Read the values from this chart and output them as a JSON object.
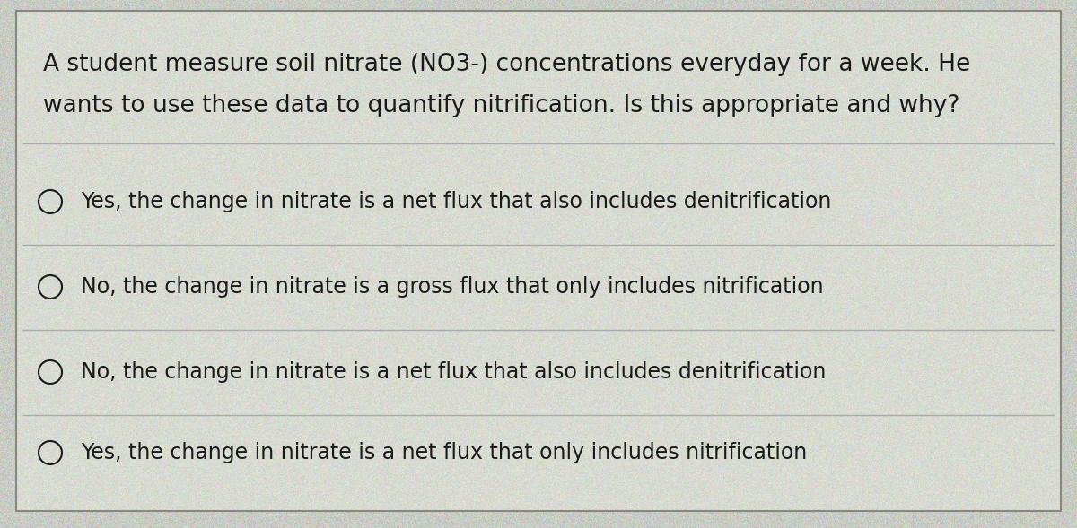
{
  "background_color": "#c8ccc4",
  "card_color": "#d8dbd2",
  "border_color": "#888880",
  "divider_color": "#aaaaaa",
  "text_color": "#1a1a1a",
  "question_line1": "A student measure soil nitrate (NO3-) concentrations everyday for a week. He",
  "question_line2": "wants to use these data to quantify nitrification. Is this appropriate and why?",
  "options": [
    "Yes, the change in nitrate is a net flux that also includes denitrification",
    "No, the change in nitrate is a gross flux that only includes nitrification",
    "No, the change in nitrate is a net flux that also includes denitrification",
    "Yes, the change in nitrate is a net flux that only includes nitrification"
  ],
  "question_fontsize": 19,
  "option_fontsize": 17,
  "figsize": [
    12.0,
    5.89
  ],
  "dpi": 100
}
